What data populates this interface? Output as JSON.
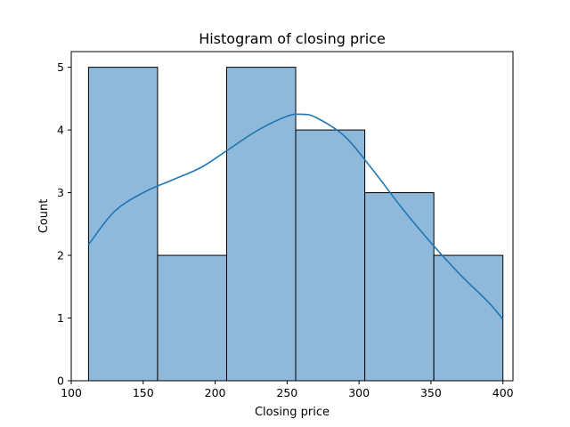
{
  "chart_data": {
    "type": "bar",
    "subtype": "histogram_with_kde",
    "title": "Histogram of closing price",
    "xlabel": "Closing price",
    "ylabel": "Count",
    "xlim": [
      100,
      407
    ],
    "ylim": [
      0,
      5.25
    ],
    "x_ticks": [
      "100",
      "150",
      "200",
      "250",
      "300",
      "350",
      "400"
    ],
    "y_ticks": [
      "0",
      "1",
      "2",
      "3",
      "4",
      "5"
    ],
    "bins": [
      {
        "start": 112,
        "end": 160,
        "count": 5
      },
      {
        "start": 160,
        "end": 208,
        "count": 2
      },
      {
        "start": 208,
        "end": 256,
        "count": 5
      },
      {
        "start": 256,
        "end": 304,
        "count": 4
      },
      {
        "start": 304,
        "end": 352,
        "count": 3
      },
      {
        "start": 352,
        "end": 400,
        "count": 2
      }
    ],
    "kde": {
      "x": [
        112,
        130,
        150,
        170,
        190,
        210,
        230,
        250,
        260,
        270,
        290,
        310,
        330,
        350,
        370,
        390,
        400
      ],
      "y": [
        2.17,
        2.7,
        3.0,
        3.2,
        3.4,
        3.7,
        4.0,
        4.22,
        4.25,
        4.2,
        3.9,
        3.35,
        2.75,
        2.2,
        1.7,
        1.25,
        0.98
      ]
    },
    "grid": false,
    "colors": {
      "bar_fill": "#8fb9da",
      "bar_edge": "#000000",
      "kde_line": "#1f77b4"
    }
  }
}
